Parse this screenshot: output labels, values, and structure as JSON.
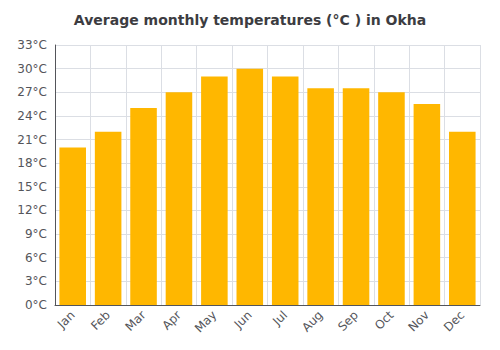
{
  "chart_data": {
    "type": "bar",
    "title": "Average monthly temperatures (°C ) in Okha",
    "categories": [
      "Jan",
      "Feb",
      "Mar",
      "Apr",
      "May",
      "Jun",
      "Jul",
      "Aug",
      "Sep",
      "Oct",
      "Nov",
      "Dec"
    ],
    "values": [
      20,
      22,
      25,
      27,
      29,
      30,
      29,
      27.5,
      27.5,
      27,
      25.5,
      22
    ],
    "color": "#FFB700",
    "ylim": [
      0,
      33
    ],
    "yticks": [
      {
        "value": 0,
        "label": "0°C"
      },
      {
        "value": 3,
        "label": "3°C"
      },
      {
        "value": 6,
        "label": "6°C"
      },
      {
        "value": 9,
        "label": "9°C"
      },
      {
        "value": 12,
        "label": "12°C"
      },
      {
        "value": 15,
        "label": "15°C"
      },
      {
        "value": 18,
        "label": "18°C"
      },
      {
        "value": 21,
        "label": "21°C"
      },
      {
        "value": 24,
        "label": "24°C"
      },
      {
        "value": 27,
        "label": "27°C"
      },
      {
        "value": 30,
        "label": "30°C"
      },
      {
        "value": 33,
        "label": "33°C"
      }
    ],
    "grid": true
  }
}
